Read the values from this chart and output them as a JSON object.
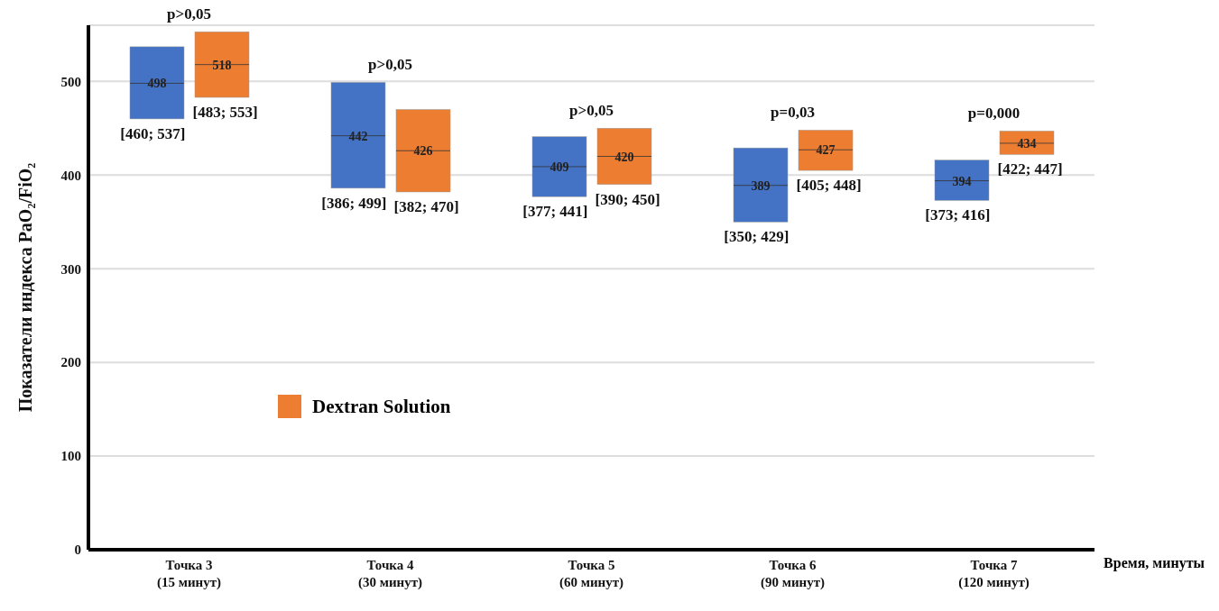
{
  "chart_data": {
    "type": "box",
    "xlabel": "Время, минуты",
    "ylabel": "Показатели индекса PaO₂/FiO₂",
    "categories": [
      "Точка 3\n(15 минут)",
      "Точка 4\n(30 минут)",
      "Точка 5\n(60 минут)",
      "Точка 6\n(90 минут)",
      "Точка 7\n(120 минут)"
    ],
    "series": [
      {
        "color": "#4472c4",
        "boxes": [
          {
            "low": 460,
            "q1": 460,
            "median": 498,
            "q3": 537,
            "high": 537
          },
          {
            "low": 386,
            "q1": 386,
            "median": 442,
            "q3": 499,
            "high": 499
          },
          {
            "low": 377,
            "q1": 377,
            "median": 409,
            "q3": 441,
            "high": 441
          },
          {
            "low": 350,
            "q1": 350,
            "median": 389,
            "q3": 429,
            "high": 429
          },
          {
            "low": 373,
            "q1": 373,
            "median": 394,
            "q3": 416,
            "high": 416
          }
        ],
        "value_labels": [
          "498",
          "442",
          "409",
          "389",
          "394"
        ]
      },
      {
        "name": "Dextran Solution",
        "color": "#ed7d31",
        "boxes": [
          {
            "low": 483,
            "q1": 483,
            "median": 518,
            "q3": 553,
            "high": 553
          },
          {
            "low": 382,
            "q1": 382,
            "median": 426,
            "q3": 470,
            "high": 470
          },
          {
            "low": 390,
            "q1": 390,
            "median": 420,
            "q3": 450,
            "high": 450
          },
          {
            "low": 405,
            "q1": 405,
            "median": 427,
            "q3": 448,
            "high": 448
          },
          {
            "low": 422,
            "q1": 422,
            "median": 434,
            "q3": 447,
            "high": 447
          }
        ],
        "value_labels": [
          "518",
          "426",
          "420",
          "427",
          "434"
        ]
      }
    ],
    "annotations": [
      "p>0,05",
      "p>0,05",
      "p>0,05",
      "p=0,03",
      "p=0,000",
      "[460; 537]",
      "[483; 553]",
      "[386; 499]",
      "[382; 470]",
      "[377; 441]",
      "[390; 450]",
      "[350; 429]",
      "[405; 448]",
      "[373; 416]",
      "[422; 447]"
    ],
    "ylim": [
      0,
      560
    ],
    "yticks": [
      0,
      100,
      200,
      300,
      400,
      500
    ],
    "grid": "y",
    "legend": "left"
  }
}
